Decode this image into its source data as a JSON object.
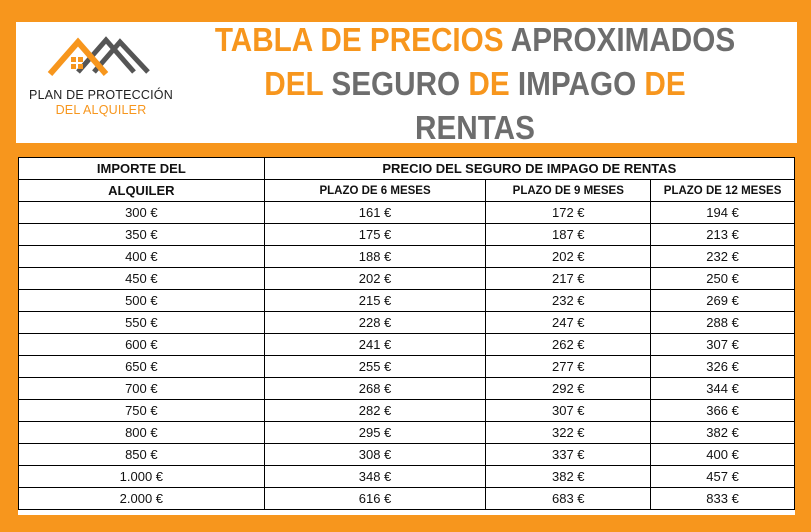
{
  "logo": {
    "line1": "PLAN DE PROTECCIÓN",
    "line2": "DEL ALQUILER"
  },
  "title": {
    "w1": "TABLA DE PRECIOS",
    "w2": "APROXIMADOS",
    "w3": "DEL",
    "w4": "SEGURO",
    "w5": "DE",
    "w6": "IMPAGO",
    "w7": "DE",
    "w8": "RENTAS"
  },
  "colors": {
    "accent": "#f7961d",
    "gray": "#6d6d6d"
  },
  "table": {
    "col0_line1": "IMPORTE DEL",
    "col0_line2": "ALQUILER",
    "group_header": "PRECIO DEL SEGURO DE IMPAGO DE RENTAS",
    "sub_headers": [
      "PLAZO DE 6 MESES",
      "PLAZO DE 9 MESES",
      "PLAZO DE 12 MESES"
    ],
    "rows": [
      [
        "300 €",
        "161 €",
        "172 €",
        "194 €"
      ],
      [
        "350 €",
        "175 €",
        "187 €",
        "213 €"
      ],
      [
        "400 €",
        "188 €",
        "202 €",
        "232 €"
      ],
      [
        "450 €",
        "202 €",
        "217 €",
        "250 €"
      ],
      [
        "500 €",
        "215 €",
        "232 €",
        "269 €"
      ],
      [
        "550 €",
        "228 €",
        "247 €",
        "288 €"
      ],
      [
        "600 €",
        "241 €",
        "262 €",
        "307 €"
      ],
      [
        "650 €",
        "255 €",
        "277 €",
        "326 €"
      ],
      [
        "700 €",
        "268 €",
        "292 €",
        "344 €"
      ],
      [
        "750 €",
        "282 €",
        "307 €",
        "366 €"
      ],
      [
        "800 €",
        "295 €",
        "322 €",
        "382 €"
      ],
      [
        "850 €",
        "308 €",
        "337 €",
        "400 €"
      ],
      [
        "1.000 €",
        "348 €",
        "382 €",
        "457 €"
      ],
      [
        "2.000 €",
        "616 €",
        "683 €",
        "833 €"
      ]
    ]
  }
}
